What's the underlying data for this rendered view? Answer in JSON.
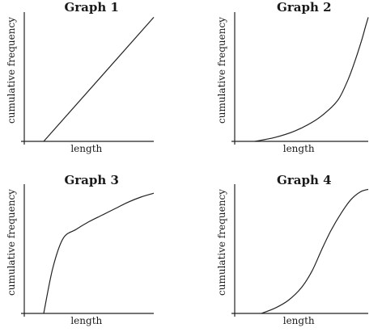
{
  "chart_data": [
    {
      "type": "line",
      "title": "Graph 1",
      "xlabel": "length",
      "ylabel": "cumulative frequency",
      "xlim": [
        0,
        10
      ],
      "ylim": [
        0,
        10
      ],
      "grid": false,
      "series": [
        {
          "x": [
            1.5,
            10
          ],
          "y": [
            0,
            9.6
          ]
        }
      ]
    },
    {
      "type": "line",
      "title": "Graph 2",
      "xlabel": "length",
      "ylabel": "cumulative frequency",
      "xlim": [
        0,
        10
      ],
      "ylim": [
        0,
        10
      ],
      "grid": false,
      "series": [
        {
          "x": [
            1.5,
            3,
            4.5,
            6,
            7,
            7.8,
            8.5,
            9,
            9.5,
            9.8,
            10
          ],
          "y": [
            0,
            0.3,
            0.8,
            1.6,
            2.4,
            3.3,
            4.8,
            6.2,
            7.8,
            8.9,
            9.6
          ]
        }
      ]
    },
    {
      "type": "line",
      "title": "Graph 3",
      "xlabel": "length",
      "ylabel": "cumulative frequency",
      "xlim": [
        0,
        10
      ],
      "ylim": [
        0,
        10
      ],
      "grid": false,
      "series": [
        {
          "x": [
            1.5,
            2.2,
            3,
            4,
            5,
            6,
            7,
            8,
            9,
            10
          ],
          "y": [
            0,
            3.5,
            5.8,
            6.5,
            7.1,
            7.6,
            8.1,
            8.6,
            9.0,
            9.3
          ]
        }
      ]
    },
    {
      "type": "line",
      "title": "Graph 4",
      "xlabel": "length",
      "ylabel": "cumulative frequency",
      "xlim": [
        0,
        10
      ],
      "ylim": [
        0,
        10
      ],
      "grid": false,
      "series": [
        {
          "x": [
            2,
            3,
            4,
            5,
            5.8,
            6.5,
            7.2,
            8,
            8.7,
            9.4,
            10
          ],
          "y": [
            0,
            0.4,
            1.0,
            2.0,
            3.3,
            4.9,
            6.4,
            7.8,
            8.8,
            9.4,
            9.6
          ]
        }
      ]
    }
  ]
}
